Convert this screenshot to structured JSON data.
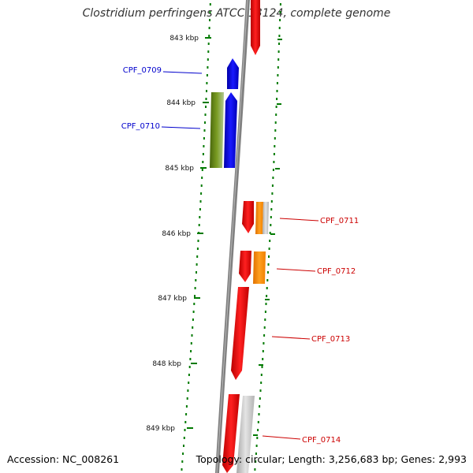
{
  "title": "Clostridium perfringens ATCC 13124, complete genome",
  "accession": "Accession: NC_008261",
  "summary": "Topology: circular; Length: 3,256,683 bp; Genes: 2,993",
  "colors": {
    "backbone": "#808080",
    "tick": "#007a00",
    "forward_label": "#0000cc",
    "reverse_label": "#cc0000",
    "red": "#e00000",
    "blue": "#0000e6",
    "olive": "#5a7a14",
    "orange": "#ff8c00",
    "gray": "#c0c0c0"
  },
  "ticks": [
    "843 kbp",
    "844 kbp",
    "845 kbp",
    "846 kbp",
    "847 kbp",
    "848 kbp",
    "849 kbp"
  ],
  "gene_labels": {
    "left": [
      "CPF_0709",
      "CPF_0710"
    ],
    "right": [
      "CPF_0711",
      "CPF_0712",
      "CPF_0713",
      "CPF_0714"
    ]
  }
}
